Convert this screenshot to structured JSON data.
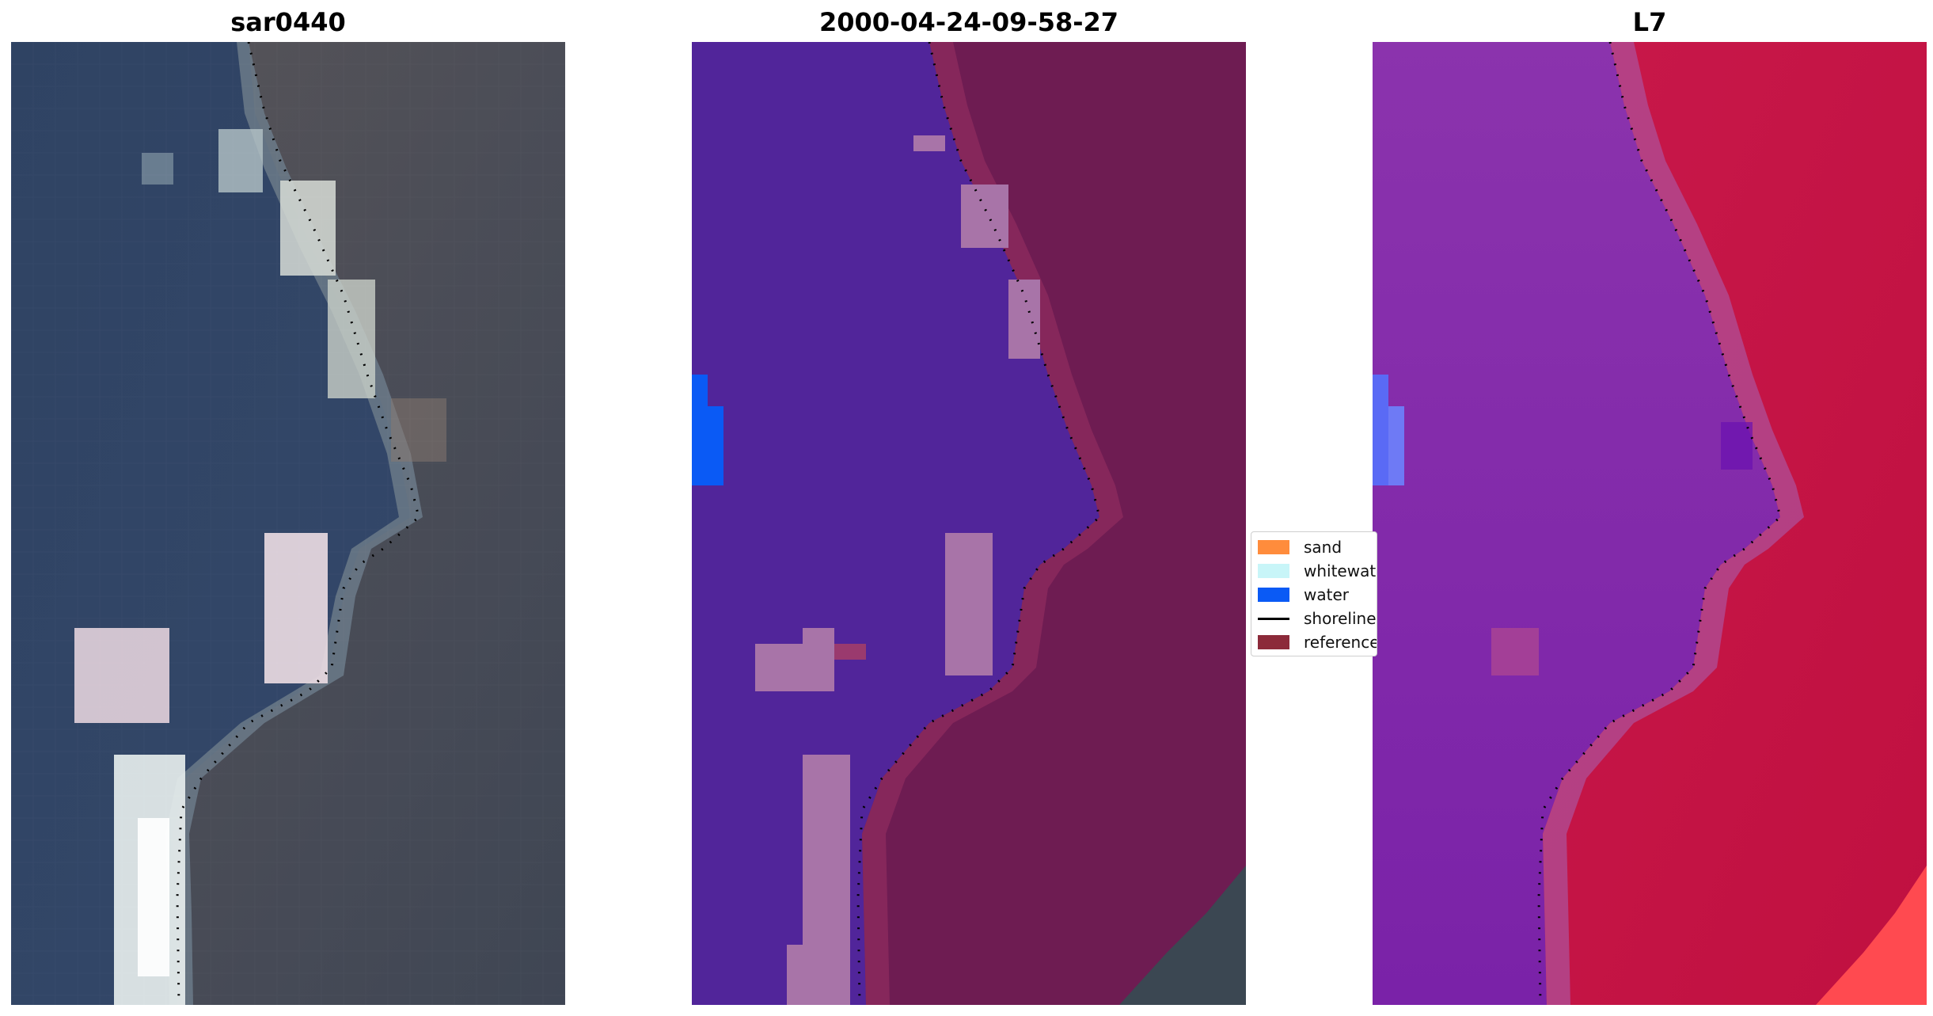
{
  "panels": [
    {
      "title": "sar0440",
      "kind": "rgb-image"
    },
    {
      "title": "2000-04-24-09-58-27",
      "kind": "classification-image"
    },
    {
      "title": "L7",
      "kind": "index-image"
    }
  ],
  "legend": {
    "placement": "center, between middle and right panels",
    "items": [
      {
        "label": "sand",
        "color": "#ff8c3c",
        "symbol": "patch"
      },
      {
        "label": "whitewater",
        "color": "#c8f5f8",
        "symbol": "patch"
      },
      {
        "label": "water",
        "color": "#0a5af5",
        "symbol": "patch"
      },
      {
        "label": "shoreline",
        "color": "#000000",
        "symbol": "line"
      },
      {
        "label": "reference",
        "color": "#8c2a3a",
        "symbol": "patch"
      }
    ]
  },
  "colors": {
    "sea_rgb": "#34486a",
    "land_rgb": "#4a4c56",
    "class_water_purple": "#51259a",
    "class_land": "#6e1c52",
    "class_pink": "#a874a8",
    "ndi_purple": "#7f2aa8",
    "ndi_red": "#c21742"
  }
}
